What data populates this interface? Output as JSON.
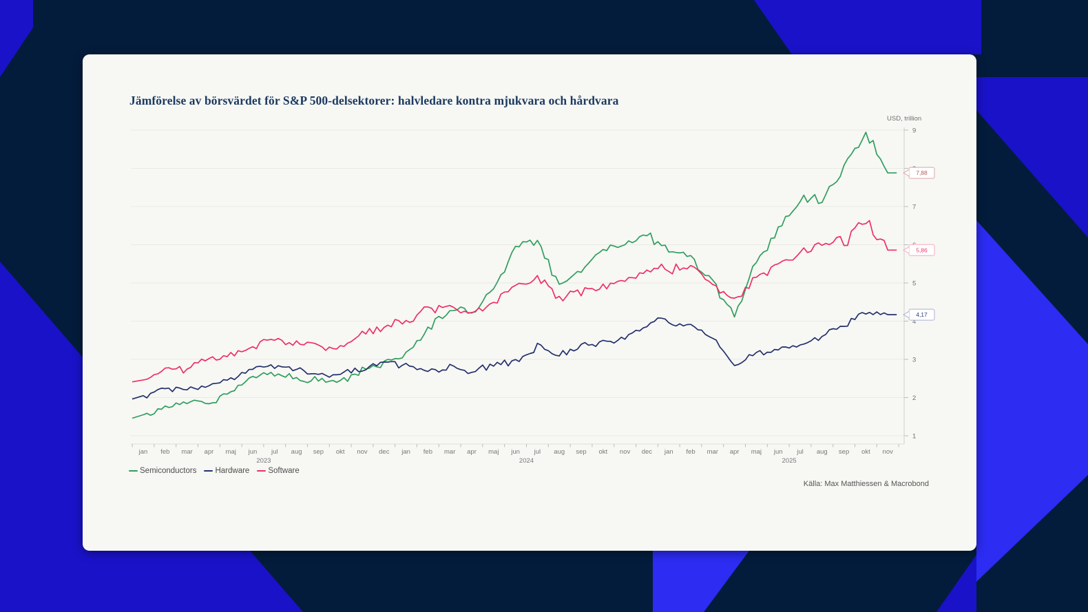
{
  "page": {
    "title": "Jämförelse av börsvärdet för S&P 500-delsektorer: halvledare kontra mjukvara och hårdvara",
    "source": "Källa: Max Matthiessen & Macrobond"
  },
  "chart_data": {
    "type": "line",
    "title": "Jämförelse av börsvärdet för S&P 500-delsektorer: halvledare kontra mjukvara och hårdvara",
    "unit_label": "USD, trillion",
    "ylim": [
      1,
      9
    ],
    "yticks": [
      1,
      2,
      3,
      4,
      5,
      6,
      7,
      8,
      9
    ],
    "grid": true,
    "legend_position": "bottom-left",
    "x_months": [
      "jan",
      "feb",
      "mar",
      "apr",
      "maj",
      "jun",
      "jul",
      "aug",
      "sep",
      "okt",
      "nov",
      "dec",
      "jan",
      "feb",
      "mar",
      "apr",
      "maj",
      "jun",
      "jul",
      "aug",
      "sep",
      "okt",
      "nov",
      "dec",
      "jan",
      "feb",
      "mar",
      "apr",
      "maj",
      "jun",
      "jul",
      "aug",
      "sep",
      "okt",
      "nov"
    ],
    "x_years": [
      {
        "label": "2023",
        "at": 5.5
      },
      {
        "label": "2024",
        "at": 17.5
      },
      {
        "label": "2025",
        "at": 29.5
      }
    ],
    "series": [
      {
        "name": "Semiconductors",
        "color": "#2e9e5b",
        "end_label": "7,88",
        "end_label_color": "#b85c5c",
        "end_badge_border": "#d8a7a7",
        "values": [
          1.5,
          1.75,
          1.9,
          1.85,
          2.15,
          2.55,
          2.65,
          2.5,
          2.45,
          2.4,
          2.7,
          2.9,
          3.15,
          3.75,
          4.35,
          4.2,
          4.9,
          5.9,
          6.2,
          4.9,
          5.35,
          5.9,
          6.0,
          6.25,
          5.9,
          5.7,
          5.0,
          4.1,
          5.6,
          6.4,
          7.1,
          7.2,
          8.0,
          8.95,
          7.88
        ]
      },
      {
        "name": "Hardware",
        "color": "#232f6b",
        "end_label": "4,17",
        "end_label_color": "#2c3c7e",
        "end_badge_border": "#a9b1d5",
        "values": [
          2.0,
          2.25,
          2.2,
          2.35,
          2.5,
          2.75,
          2.85,
          2.75,
          2.65,
          2.6,
          2.75,
          2.9,
          2.85,
          2.7,
          2.8,
          2.65,
          2.85,
          2.95,
          3.35,
          3.1,
          3.35,
          3.45,
          3.55,
          3.95,
          4.05,
          3.85,
          3.6,
          2.8,
          3.15,
          3.25,
          3.35,
          3.55,
          3.9,
          4.25,
          4.17
        ]
      },
      {
        "name": "Software",
        "color": "#ee2f63",
        "end_label": "5,86",
        "end_label_color": "#ee3d72",
        "end_badge_border": "#f4a8c0",
        "values": [
          2.45,
          2.7,
          2.75,
          3.0,
          3.1,
          3.35,
          3.55,
          3.4,
          3.35,
          3.3,
          3.65,
          3.85,
          4.0,
          4.3,
          4.35,
          4.2,
          4.5,
          4.9,
          5.15,
          4.6,
          4.75,
          4.95,
          5.1,
          5.4,
          5.35,
          5.45,
          5.0,
          4.6,
          5.15,
          5.5,
          5.8,
          6.1,
          6.05,
          6.6,
          5.86
        ]
      }
    ]
  }
}
